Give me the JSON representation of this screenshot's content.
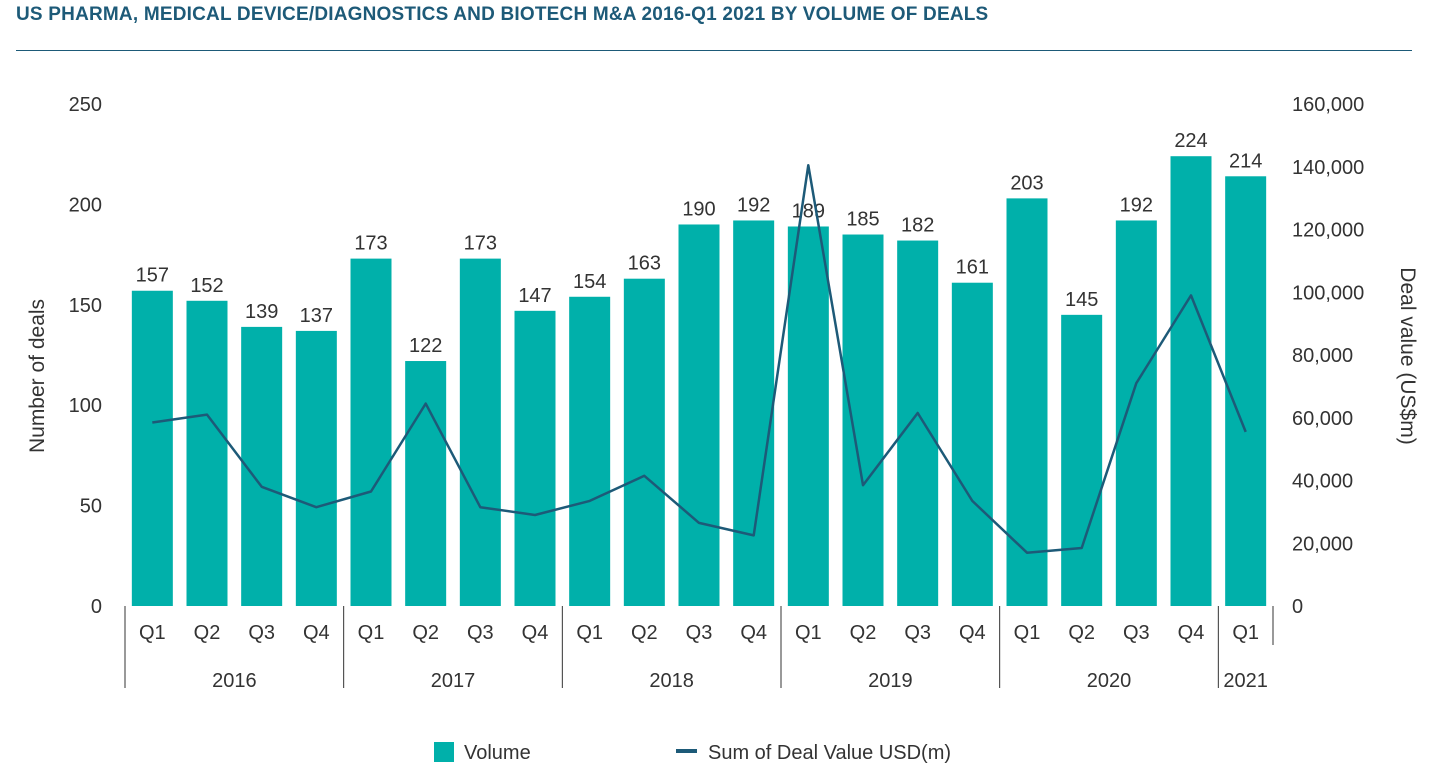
{
  "chart_data": {
    "type": "bar",
    "title": "US PHARMA, MEDICAL DEVICE/DIAGNOSTICS AND BIOTECH M&A 2016-Q1 2021 BY VOLUME OF DEALS",
    "categories": [
      "Q1",
      "Q2",
      "Q3",
      "Q4",
      "Q1",
      "Q2",
      "Q3",
      "Q4",
      "Q1",
      "Q2",
      "Q3",
      "Q4",
      "Q1",
      "Q2",
      "Q3",
      "Q4",
      "Q1",
      "Q2",
      "Q3",
      "Q4",
      "Q1"
    ],
    "years": [
      {
        "label": "2016",
        "count": 4
      },
      {
        "label": "2017",
        "count": 4
      },
      {
        "label": "2018",
        "count": 4
      },
      {
        "label": "2019",
        "count": 4
      },
      {
        "label": "2020",
        "count": 4
      },
      {
        "label": "2021",
        "count": 1
      }
    ],
    "series": [
      {
        "name": "Volume",
        "type": "bar",
        "axis": "left",
        "color": "#00b0aa",
        "values": [
          157,
          152,
          139,
          137,
          173,
          122,
          173,
          147,
          154,
          163,
          190,
          192,
          189,
          185,
          182,
          161,
          203,
          145,
          192,
          224,
          214
        ]
      },
      {
        "name": "Sum of Deal Value USD(m)",
        "type": "line",
        "axis": "right",
        "color": "#1d5a78",
        "values": [
          58500,
          61000,
          38000,
          31500,
          36500,
          64500,
          31500,
          29000,
          33500,
          41500,
          26500,
          22500,
          140500,
          38500,
          61500,
          33500,
          17000,
          18500,
          71000,
          99000,
          55500
        ]
      }
    ],
    "ylabel": "Number of deals",
    "ylim": [
      0,
      250
    ],
    "yticks": [
      "250",
      "200",
      "150",
      "100",
      "50",
      "0"
    ],
    "y2label": "Deal value (US$m)",
    "y2lim": [
      0,
      160000
    ],
    "y2ticks": [
      "160,000",
      "140,000",
      "120,000",
      "100,000",
      "80,000",
      "60,000",
      "40,000",
      "20,000",
      "0"
    ],
    "grid": false,
    "legend_position": "bottom"
  }
}
